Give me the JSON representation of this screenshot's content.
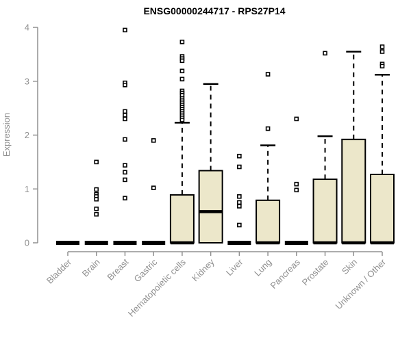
{
  "chart_data": {
    "type": "boxplot",
    "title": "ENSG00000244717 - RPS27P14",
    "ylabel": "Expression",
    "xlabel": "",
    "ylim": [
      0,
      4
    ],
    "yticks": [
      0,
      1,
      2,
      3,
      4
    ],
    "grid": "off",
    "legend": "none",
    "categories": [
      "Bladder",
      "Brain",
      "Breast",
      "Gastric",
      "Hematopoietic cells",
      "Kidney",
      "Liver",
      "Lung",
      "Pancreas",
      "Prostate",
      "Skin",
      "Unknown / Other"
    ],
    "boxes": [
      {
        "category": "Bladder",
        "q1": 0,
        "median": 0,
        "q3": 0,
        "whisker_low": 0,
        "whisker_high": 0,
        "outliers": []
      },
      {
        "category": "Brain",
        "q1": 0,
        "median": 0,
        "q3": 0,
        "whisker_low": 0,
        "whisker_high": 0,
        "outliers": [
          1.5,
          0.99,
          0.9,
          0.86,
          0.81,
          0.63,
          0.53
        ]
      },
      {
        "category": "Breast",
        "q1": 0,
        "median": 0,
        "q3": 0,
        "whisker_low": 0,
        "whisker_high": 0,
        "outliers": [
          3.95,
          2.97,
          2.93,
          2.44,
          2.37,
          2.3,
          1.92,
          1.44,
          1.31,
          1.17,
          0.83
        ]
      },
      {
        "category": "Gastric",
        "q1": 0,
        "median": 0,
        "q3": 0,
        "whisker_low": 0,
        "whisker_high": 0,
        "outliers": [
          1.9,
          1.02
        ]
      },
      {
        "category": "Hematopoietic cells",
        "q1": 0,
        "median": 0,
        "q3": 0.89,
        "whisker_low": 0,
        "whisker_high": 2.23,
        "outliers": [
          3.73,
          3.46,
          3.42,
          3.38,
          3.19,
          3.04,
          2.82,
          2.78,
          2.74,
          2.68,
          2.64,
          2.6,
          2.56,
          2.52,
          2.48,
          2.44,
          2.4,
          2.36,
          2.32,
          2.28
        ]
      },
      {
        "category": "Kidney",
        "q1": 0,
        "median": 0.58,
        "q3": 1.34,
        "whisker_low": 0,
        "whisker_high": 2.95,
        "outliers": []
      },
      {
        "category": "Liver",
        "q1": 0,
        "median": 0,
        "q3": 0,
        "whisker_low": 0,
        "whisker_high": 0,
        "outliers": [
          1.61,
          1.41,
          0.86,
          0.75,
          0.68,
          0.33
        ]
      },
      {
        "category": "Lung",
        "q1": 0,
        "median": 0,
        "q3": 0.79,
        "whisker_low": 0,
        "whisker_high": 1.81,
        "outliers": [
          3.13,
          2.12
        ]
      },
      {
        "category": "Pancreas",
        "q1": 0,
        "median": 0,
        "q3": 0,
        "whisker_low": 0,
        "whisker_high": 0,
        "outliers": [
          2.3,
          1.09,
          0.98
        ]
      },
      {
        "category": "Prostate",
        "q1": 0,
        "median": 0,
        "q3": 1.18,
        "whisker_low": 0,
        "whisker_high": 1.98,
        "outliers": [
          3.52
        ]
      },
      {
        "category": "Skin",
        "q1": 0,
        "median": 0,
        "q3": 1.92,
        "whisker_low": 0,
        "whisker_high": 3.55,
        "outliers": []
      },
      {
        "category": "Unknown / Other",
        "q1": 0,
        "median": 0,
        "q3": 1.27,
        "whisker_low": 0,
        "whisker_high": 3.12,
        "outliers": [
          3.64,
          3.55,
          3.32,
          3.28
        ]
      }
    ],
    "colors": {
      "box_fill": "#ECE7CA",
      "box_stroke": "#000000",
      "median": "#000000",
      "whisker": "#000000",
      "outlier_stroke": "#000000",
      "outlier_fill": "#ffffff",
      "axis": "#909090",
      "title": "#000000",
      "background": "#ffffff"
    }
  }
}
